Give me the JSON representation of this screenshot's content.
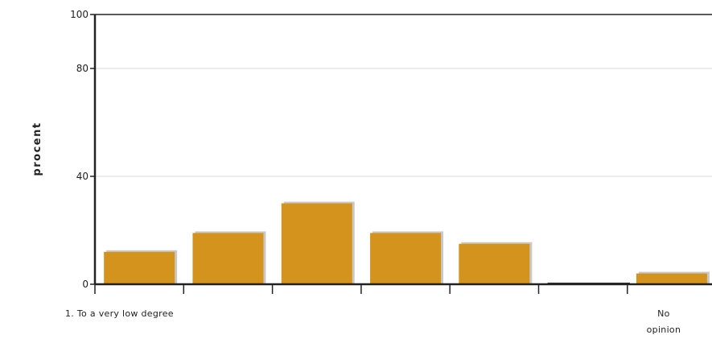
{
  "chart_data": {
    "type": "bar",
    "categories": [
      "1. To a very low degree",
      "",
      "",
      "",
      "",
      "",
      "No opinion"
    ],
    "values": [
      12,
      19,
      30,
      19,
      15,
      0,
      4
    ],
    "ylabel": "procent",
    "xlabel": "",
    "ylim": [
      0,
      100
    ],
    "yticks": [
      0,
      40,
      80,
      100
    ],
    "grid": true,
    "colors": {
      "bar": "#d4931c",
      "bar_shadow": "#c8c8c8",
      "axis": "#222222",
      "grid": "#d9d9d9"
    }
  }
}
